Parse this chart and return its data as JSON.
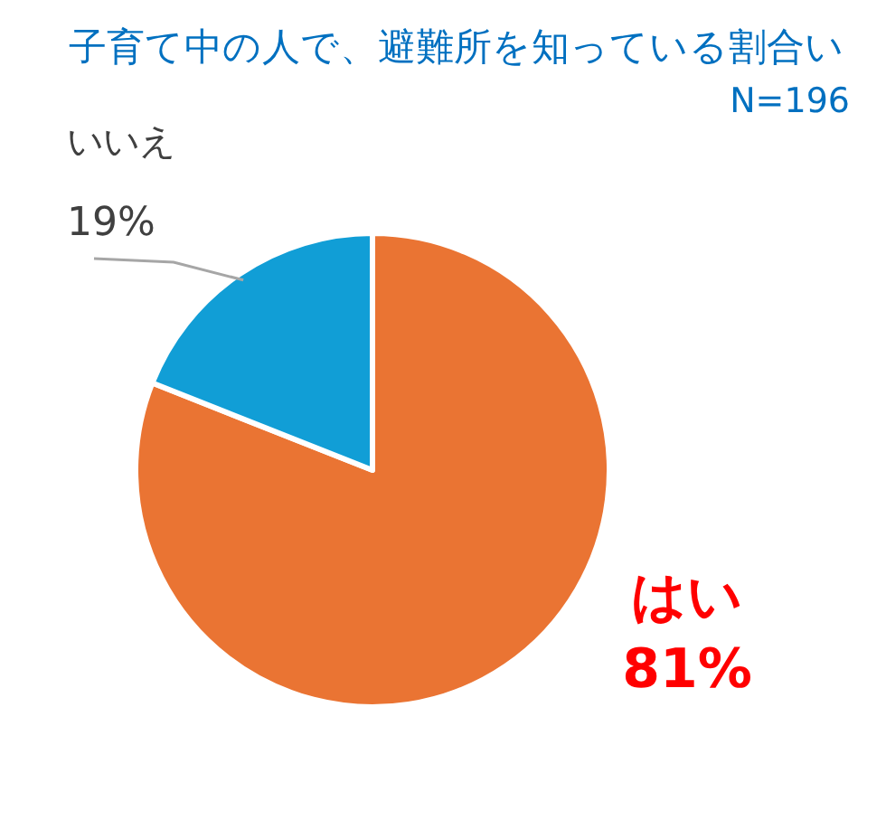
{
  "chart_data": {
    "type": "pie",
    "title": "子育て中の人で、避難所を知っている割合い",
    "subtitle": "N=196",
    "categories": [
      "はい",
      "いいえ"
    ],
    "values": [
      81,
      19
    ],
    "colors": [
      "#ea7433",
      "#119ed6"
    ],
    "value_labels": [
      "81%",
      "19%"
    ]
  }
}
